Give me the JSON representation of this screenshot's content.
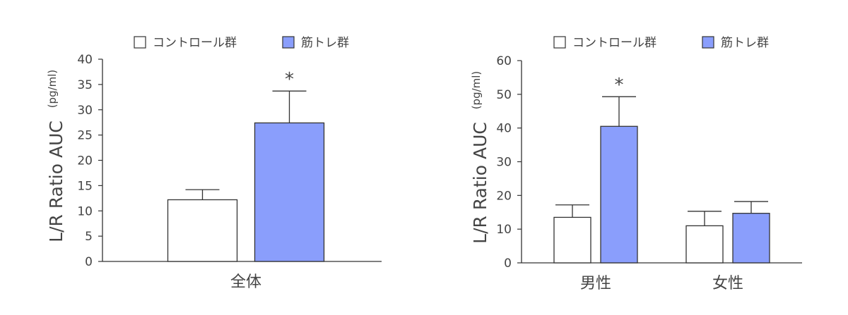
{
  "legend": {
    "control": "コントロール群",
    "training": "筋トレ群"
  },
  "colors": {
    "control": "#ffffff",
    "training": "#8a9efc",
    "stroke": "#333333",
    "text": "#444444"
  },
  "chart_data": [
    {
      "type": "bar",
      "categories": [
        "全体"
      ],
      "series": [
        {
          "name": "コントロール群",
          "values": [
            12.2
          ],
          "errors": [
            2.0
          ]
        },
        {
          "name": "筋トレ群",
          "values": [
            27.4
          ],
          "errors": [
            6.3
          ]
        }
      ],
      "ylabel": "L/R Ratio AUC",
      "yunit": "(pg/ml)",
      "ylim": [
        0,
        40
      ],
      "yticks": [
        0,
        5,
        10,
        15,
        20,
        25,
        30,
        35,
        40
      ],
      "significance": [
        "",
        "*"
      ],
      "legend_position": "top",
      "grid": false
    },
    {
      "type": "bar",
      "categories": [
        "男性",
        "女性"
      ],
      "series": [
        {
          "name": "コントロール群",
          "values": [
            13.5,
            11.0
          ],
          "errors": [
            3.7,
            4.3
          ]
        },
        {
          "name": "筋トレ群",
          "values": [
            40.5,
            14.7
          ],
          "errors": [
            8.8,
            3.5
          ]
        }
      ],
      "ylabel": "L/R Ratio AUC",
      "yunit": "(pg/ml)",
      "ylim": [
        0,
        60
      ],
      "yticks": [
        0,
        10,
        20,
        30,
        40,
        50,
        60
      ],
      "significance": [
        "",
        "*"
      ],
      "legend_position": "top",
      "grid": false
    }
  ]
}
